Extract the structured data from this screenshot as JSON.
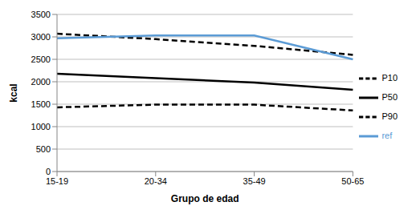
{
  "chart_data": {
    "type": "line",
    "x_label": "Grupo de edad",
    "y_label": "kcal",
    "categories": [
      "15-19",
      "20-34",
      "35-49",
      "50-65"
    ],
    "series": [
      {
        "name": "P90",
        "color": "#000000",
        "line_style": "dashed",
        "values": [
          3070,
          2950,
          2800,
          2600
        ]
      },
      {
        "name": "P50",
        "color": "#000000",
        "line_style": "solid",
        "values": [
          2180,
          2080,
          1980,
          1820
        ]
      },
      {
        "name": "P10",
        "color": "#000000",
        "line_style": "dashed",
        "values": [
          1430,
          1490,
          1490,
          1360
        ]
      },
      {
        "name": "ref",
        "color": "#5b9bd5",
        "line_style": "solid",
        "values": [
          2970,
          3030,
          3030,
          2500
        ]
      }
    ],
    "ylim": [
      0,
      3500
    ],
    "yticks": [
      0,
      500,
      1000,
      1500,
      2000,
      2500,
      3000,
      3500
    ],
    "grid": true,
    "legend": "right"
  }
}
